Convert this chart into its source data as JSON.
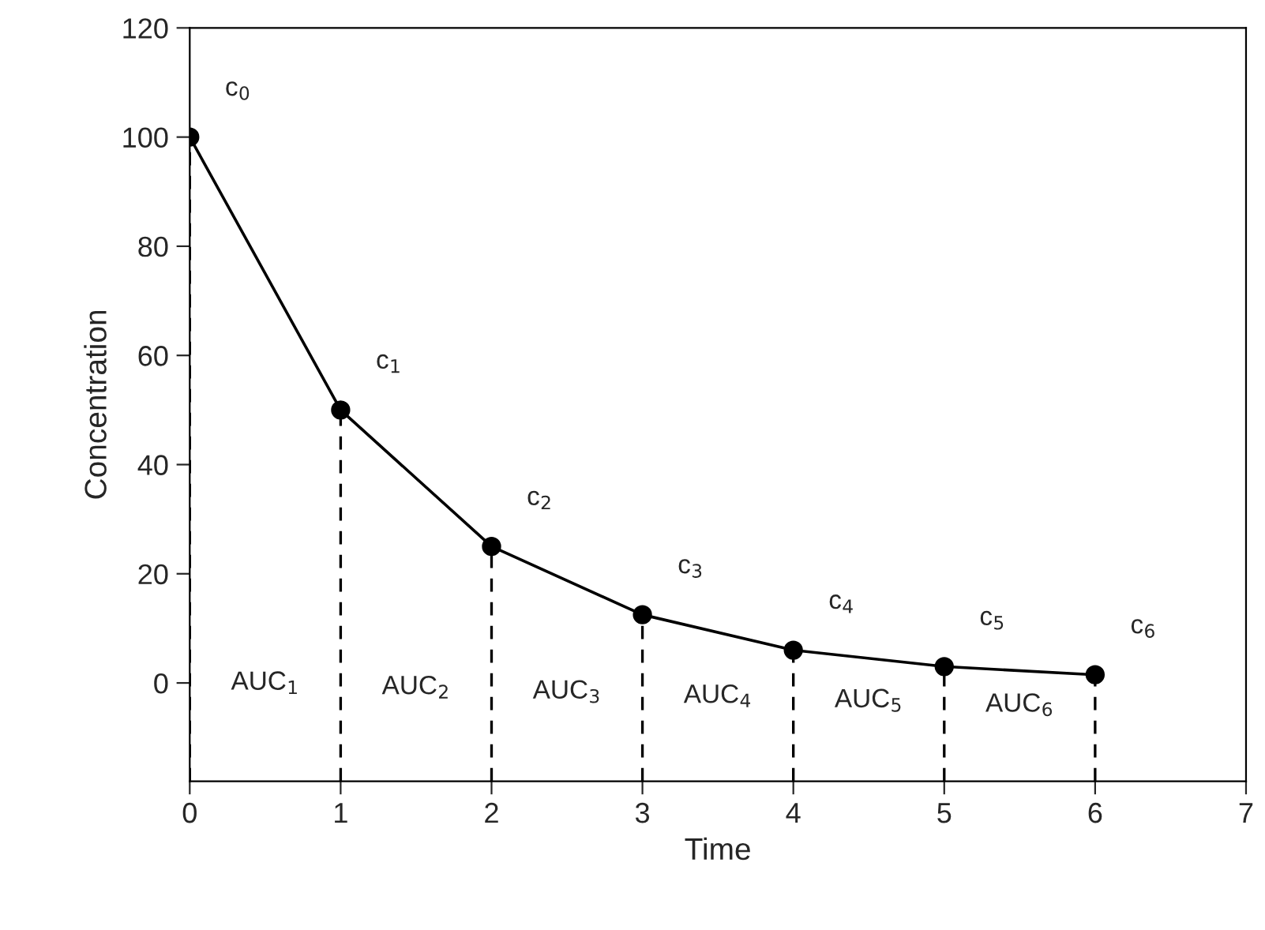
{
  "chart_data": {
    "type": "line",
    "xlabel": "Time",
    "ylabel": "Concentration",
    "x": [
      0,
      1,
      2,
      3,
      4,
      5,
      6
    ],
    "series": [
      {
        "color": "#000000",
        "values": [
          100,
          50,
          25,
          12.5,
          6,
          3,
          1.5
        ]
      }
    ],
    "marker": "circle",
    "line_style": "solid",
    "grid": false,
    "legend": false,
    "xlim": [
      0,
      7
    ],
    "xticks": [
      0,
      1,
      2,
      3,
      4,
      5,
      6,
      7
    ],
    "ylim": [
      -18,
      120
    ],
    "yticks": [
      0,
      20,
      40,
      60,
      80,
      100,
      120
    ],
    "ref_lines": [
      {
        "axis": "x",
        "value": 0,
        "line_style": "dashed",
        "color": "#000000"
      },
      {
        "axis": "x",
        "value": 1,
        "line_style": "dashed",
        "color": "#000000"
      },
      {
        "axis": "x",
        "value": 2,
        "line_style": "dashed",
        "color": "#000000"
      },
      {
        "axis": "x",
        "value": 3,
        "line_style": "dashed",
        "color": "#000000"
      },
      {
        "axis": "x",
        "value": 4,
        "line_style": "dashed",
        "color": "#000000"
      },
      {
        "axis": "x",
        "value": 5,
        "line_style": "dashed",
        "color": "#000000"
      },
      {
        "axis": "x",
        "value": 6,
        "line_style": "dashed",
        "color": "#000000"
      }
    ],
    "annotations": [
      {
        "text": "c$_{0}$",
        "x": 0,
        "y": 100
      },
      {
        "text": "c$_{1}$",
        "x": 1,
        "y": 50
      },
      {
        "text": "c$_{2}$",
        "x": 2,
        "y": 25
      },
      {
        "text": "c$_{3}$",
        "x": 3,
        "y": 12.5
      },
      {
        "text": "c$_{4}$",
        "x": 4,
        "y": 6
      },
      {
        "text": "c$_{5}$",
        "x": 5,
        "y": 3
      },
      {
        "text": "c$_{6}$",
        "x": 6,
        "y": 1.5
      },
      "AUC$_{1}$",
      "AUC$_{2}$",
      "AUC$_{3}$",
      "AUC$_{4}$",
      "AUC$_{5}$",
      "AUC$_{6}$"
    ]
  }
}
